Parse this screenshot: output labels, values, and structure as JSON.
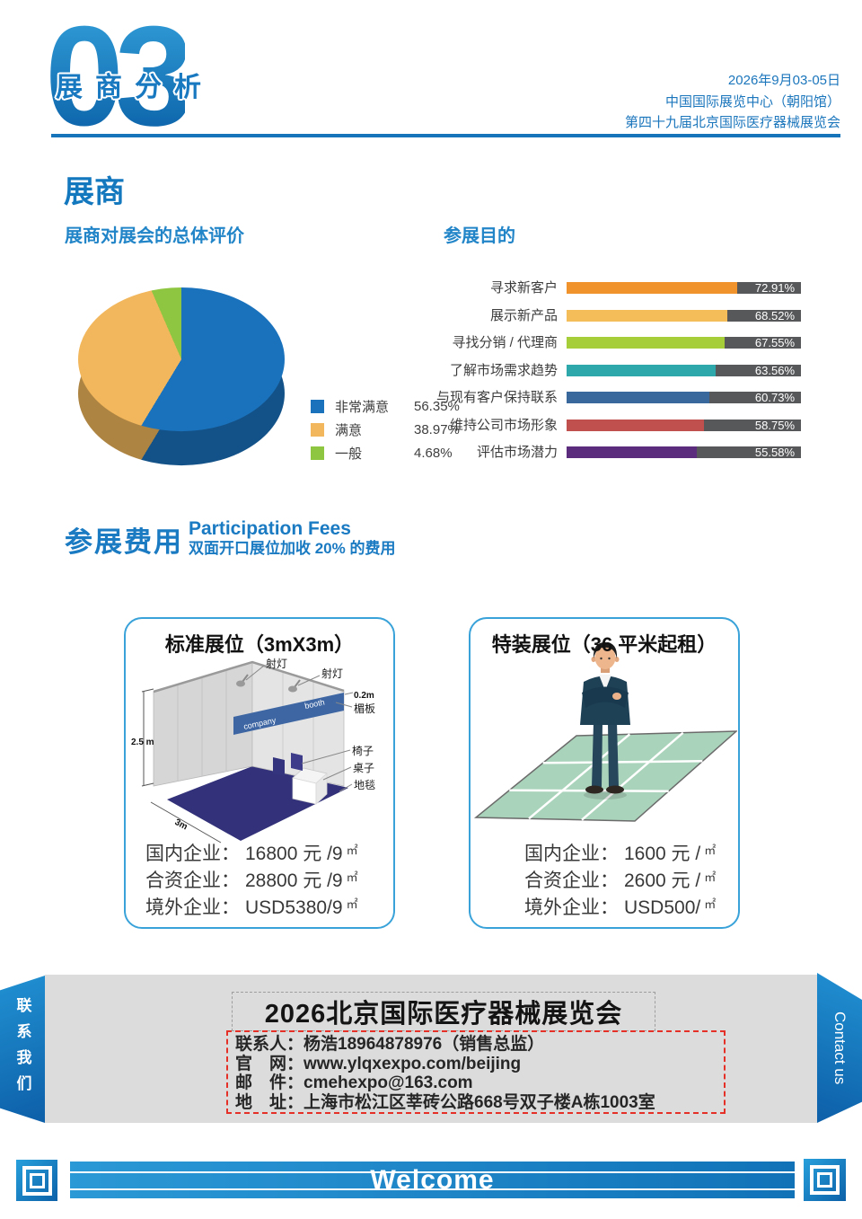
{
  "page": {
    "number": "03",
    "section_title": "展商分析"
  },
  "header": {
    "lines": [
      "2026年9月03-05日",
      "中国国际展览中心（朝阳馆）",
      "第四十九届北京国际医疗器械展览会"
    ]
  },
  "exhibitor_section": {
    "title": "展商"
  },
  "chart_data": [
    {
      "type": "pie",
      "style": "3d",
      "title": "展商对展会的总体评价",
      "labels": [
        "非常满意",
        "满意",
        "一般"
      ],
      "values": [
        56.35,
        38.97,
        4.68
      ],
      "displays": [
        "56.35%",
        "38.97%",
        "4.68%"
      ],
      "colors": [
        "#1a72bd",
        "#f2b75c",
        "#8fc641"
      ],
      "legend_position": "right"
    },
    {
      "type": "bar",
      "orientation": "horizontal",
      "title": "参展目的",
      "categories": [
        "寻求新客户",
        "展示新产品",
        "寻找分销 / 代理商",
        "了解市场需求趋势",
        "与现有客户保持联系",
        "维持公司市场形象",
        "评估市场潜力"
      ],
      "values": [
        72.91,
        68.52,
        67.55,
        63.56,
        60.73,
        58.75,
        55.58
      ],
      "displays": [
        "72.91%",
        "68.52%",
        "67.55%",
        "63.56%",
        "60.73%",
        "58.75%",
        "55.58%"
      ],
      "colors": [
        "#f0932c",
        "#f5bd5a",
        "#a6ce39",
        "#2fa8ac",
        "#38689c",
        "#c0504d",
        "#5b2c7d"
      ],
      "track_color": "#57585a",
      "xlim": [
        0,
        100
      ]
    }
  ],
  "fees": {
    "title": "参展费用",
    "subtitle_en": "Participation Fees",
    "subtitle_cn": "双面开口展位加收 20% 的费用",
    "standard": {
      "title": "标准展位（3mX3m）",
      "prices": [
        {
          "label": "国内企业：",
          "value": "16800 元 /9",
          "unit": "㎡"
        },
        {
          "label": "合资企业：",
          "value": "28800 元 /9",
          "unit": "㎡"
        },
        {
          "label": "境外企业：",
          "value": "USD5380/9",
          "unit": "㎡"
        }
      ]
    },
    "special": {
      "title": "特装展位（36 平米起租）",
      "prices": [
        {
          "label": "国内企业：",
          "value": "1600 元 /",
          "unit": "㎡"
        },
        {
          "label": "合资企业：",
          "value": "2600 元 /",
          "unit": "㎡"
        },
        {
          "label": "境外企业：",
          "value": "USD500/",
          "unit": "㎡"
        }
      ]
    }
  },
  "booth_diagram": {
    "spotlight1": "射灯",
    "spotlight2": "射灯",
    "fascia_height": "0.2m",
    "fascia": "楣板",
    "chair": "椅子",
    "table": "桌子",
    "carpet": "地毯",
    "dim_height": "2.5 m",
    "dim_width": "3m",
    "fascia_text_left": "company",
    "fascia_text_right": "booth"
  },
  "contact": {
    "title": "2026北京国际医疗器械展览会",
    "rows": [
      {
        "label": "联系人：",
        "value": "杨浩18964878976（销售总监）"
      },
      {
        "label": "官　网：",
        "value": "www.ylqxexpo.com/beijing"
      },
      {
        "label": "邮　件：",
        "value": "cmehexpo@163.com"
      },
      {
        "label": "地　址：",
        "value": "上海市松江区莘砖公路668号双子楼A栋1003室"
      }
    ],
    "left_tab": "联系我们",
    "right_tab": "Contact us"
  },
  "footer": {
    "welcome": "Welcome"
  }
}
